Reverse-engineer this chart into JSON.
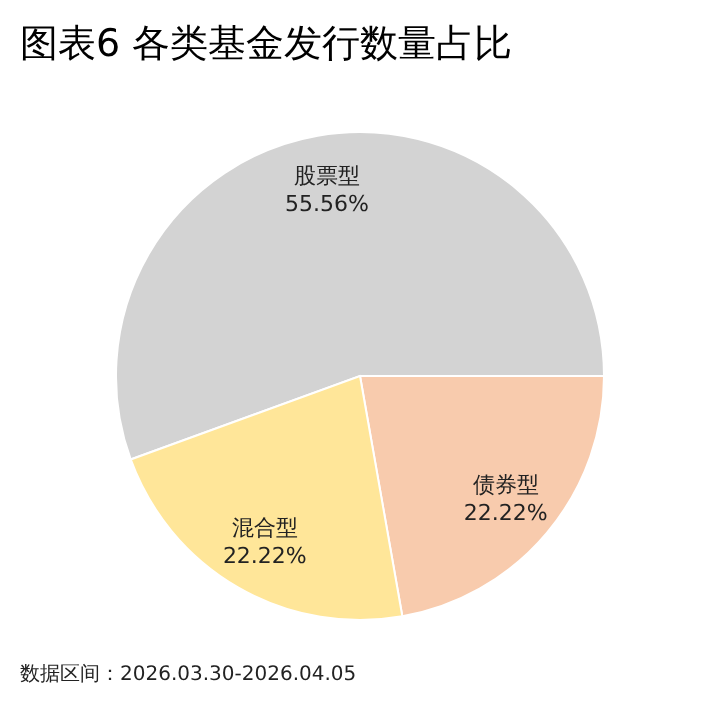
{
  "chart_data": {
    "type": "pie",
    "title": "图表6 各类基金发行数量占比",
    "categories": [
      "股票型",
      "债券型",
      "混合型"
    ],
    "values": [
      55.56,
      22.22,
      22.22
    ],
    "colors": [
      "#d3d3d3",
      "#f8cbad",
      "#ffe699"
    ],
    "value_labels": [
      "55.56%",
      "22.22%",
      "22.22%"
    ],
    "annotations": [
      "数据区间：2026.03.30-2026.04.05"
    ]
  }
}
